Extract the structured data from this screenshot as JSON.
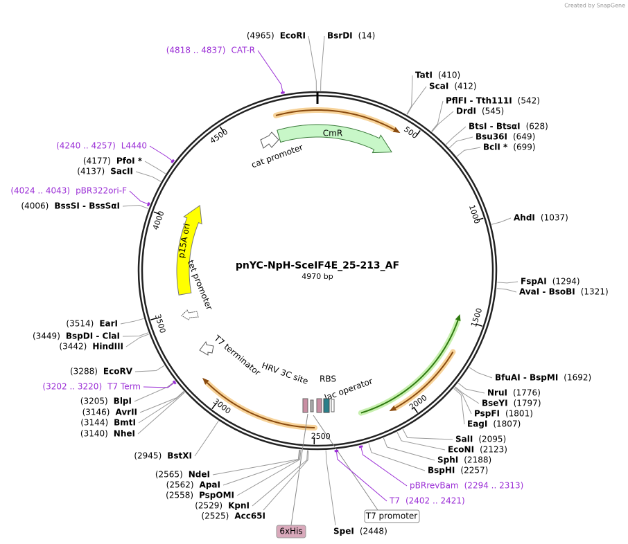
{
  "credit": "Created by SnapGene",
  "title": "pnYC-NpH-SceIF4E_25-213_AF",
  "length": "4970 bp",
  "ring_ticks": [
    500,
    1000,
    1500,
    2000,
    2500,
    3000,
    3500,
    4000,
    4500
  ],
  "sites": [
    {
      "name": "EcoRI",
      "position": "(4965)"
    },
    {
      "name": "BsrDI",
      "position": "(14)"
    },
    {
      "name": "TatI",
      "position": "(410)"
    },
    {
      "name": "ScaI",
      "position": "(412)"
    },
    {
      "name": "PflFI - Tth111I",
      "position": "(542)"
    },
    {
      "name": "DrdI",
      "position": "(545)"
    },
    {
      "name": "BtsI - BtsαI",
      "position": "(628)"
    },
    {
      "name": "Bsu36I",
      "position": "(649)"
    },
    {
      "name": "BclI *",
      "position": "(699)"
    },
    {
      "name": "AhdI",
      "position": "(1037)"
    },
    {
      "name": "FspAI",
      "position": "(1294)"
    },
    {
      "name": "AvaI - BsoBI",
      "position": "(1321)"
    },
    {
      "name": "BfuAI - BspMI",
      "position": "(1692)"
    },
    {
      "name": "NruI",
      "position": "(1776)"
    },
    {
      "name": "BseYI",
      "position": "(1797)"
    },
    {
      "name": "PspFI",
      "position": "(1801)"
    },
    {
      "name": "EagI",
      "position": "(1807)"
    },
    {
      "name": "SalI",
      "position": "(2095)"
    },
    {
      "name": "EcoNI",
      "position": "(2123)"
    },
    {
      "name": "SphI",
      "position": "(2188)"
    },
    {
      "name": "BspHI",
      "position": "(2257)"
    },
    {
      "name": "SpeI",
      "position": "(2448)"
    },
    {
      "name": "Acc65I",
      "position": "(2525)"
    },
    {
      "name": "KpnI",
      "position": "(2529)"
    },
    {
      "name": "PspOMI",
      "position": "(2558)"
    },
    {
      "name": "ApaI",
      "position": "(2562)"
    },
    {
      "name": "NdeI",
      "position": "(2565)"
    },
    {
      "name": "BstXI",
      "position": "(2945)"
    },
    {
      "name": "NheI",
      "position": "(3140)"
    },
    {
      "name": "BmtI",
      "position": "(3144)"
    },
    {
      "name": "AvrII",
      "position": "(3146)"
    },
    {
      "name": "BlpI",
      "position": "(3205)"
    },
    {
      "name": "EcoRV",
      "position": "(3288)"
    },
    {
      "name": "HindIII",
      "position": "(3442)"
    },
    {
      "name": "BspDI - ClaI",
      "position": "(3449)"
    },
    {
      "name": "EarI",
      "position": "(3514)"
    },
    {
      "name": "BssSI - BssSαI",
      "position": "(4006)"
    },
    {
      "name": "SacII",
      "position": "(4137)"
    },
    {
      "name": "PfoI *",
      "position": "(4177)"
    }
  ],
  "primers": [
    {
      "name": "CAT-R",
      "range": "(4818 .. 4837)"
    },
    {
      "name": "L4440",
      "range": "(4240 .. 4257)"
    },
    {
      "name": "pBR322ori-F",
      "range": "(4024 .. 4043)"
    },
    {
      "name": "T7 Term",
      "range": "(3202 .. 3220)"
    },
    {
      "name": "pBRrevBam",
      "range": "(2294 .. 2313)"
    },
    {
      "name": "T7",
      "range": "(2402 .. 2421)"
    }
  ],
  "features": [
    {
      "label": "CmR"
    },
    {
      "label": "cat promoter"
    },
    {
      "label": "p15A ori"
    },
    {
      "label": "tet promoter"
    },
    {
      "label": "T7 terminator"
    },
    {
      "label": "HRV 3C site"
    },
    {
      "label": "RBS"
    },
    {
      "label": "lac operator"
    },
    {
      "label": "T7 promoter"
    },
    {
      "label": "6xHis"
    }
  ]
}
